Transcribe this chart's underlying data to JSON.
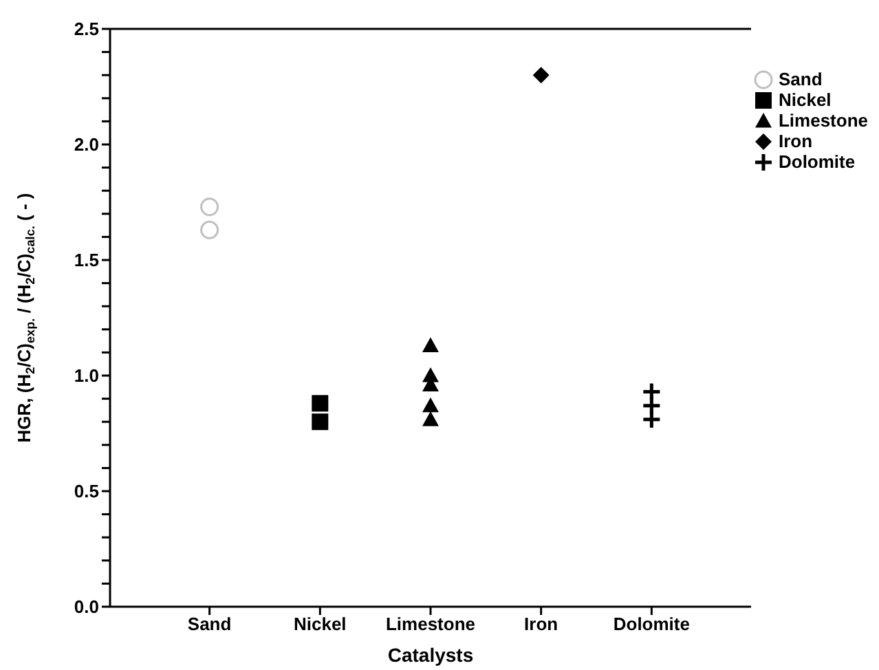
{
  "chart_data": {
    "type": "scatter",
    "xlabel": "Catalysts",
    "ylabel": "HGR, (H$_{2}$/C)$_{exp.}$  /  (H$_{2}$/C)$_{calc.}$ ( - )",
    "categories": [
      "Sand",
      "Nickel",
      "Limestone",
      "Iron",
      "Dolomite"
    ],
    "series": [
      {
        "name": "Sand",
        "color": "#c0c0c0",
        "marker": "circle",
        "x": [
          "Sand",
          "Sand"
        ],
        "values": [
          1.73,
          1.63
        ]
      },
      {
        "name": "Nickel",
        "color": "#000000",
        "marker": "square",
        "x": [
          "Nickel",
          "Nickel"
        ],
        "values": [
          0.88,
          0.8
        ]
      },
      {
        "name": "Limestone",
        "color": "#000000",
        "marker": "triangle",
        "x": [
          "Limestone",
          "Limestone",
          "Limestone",
          "Limestone",
          "Limestone"
        ],
        "values": [
          1.13,
          1.0,
          0.96,
          0.87,
          0.81
        ]
      },
      {
        "name": "Iron",
        "color": "#000000",
        "marker": "diamond",
        "x": [
          "Iron"
        ],
        "values": [
          2.3
        ]
      },
      {
        "name": "Dolomite",
        "color": "#000000",
        "marker": "cross",
        "x": [
          "Dolomite",
          "Dolomite",
          "Dolomite"
        ],
        "values": [
          0.93,
          0.87,
          0.81
        ]
      }
    ],
    "ylim": [
      0,
      2.5
    ],
    "yticks": [
      {
        "value": 0,
        "label": "0.0"
      },
      {
        "value": 0.1,
        "label": null
      },
      {
        "value": 0.2,
        "label": null
      },
      {
        "value": 0.3,
        "label": null
      },
      {
        "value": 0.4,
        "label": null
      },
      0.5,
      {
        "value": 0.6,
        "label": null
      },
      {
        "value": 0.7,
        "label": null
      },
      {
        "value": 0.8,
        "label": null
      },
      {
        "value": 0.9,
        "label": null
      },
      {
        "value": 1,
        "label": "1.0"
      },
      {
        "value": 1.1,
        "label": null
      },
      {
        "value": 1.2,
        "label": null
      },
      {
        "value": 1.3,
        "label": null
      },
      {
        "value": 1.4,
        "label": null
      },
      1.5,
      {
        "value": 1.6,
        "label": null
      },
      {
        "value": 1.7,
        "label": null
      },
      {
        "value": 1.8,
        "label": null
      },
      {
        "value": 1.9,
        "label": null
      },
      {
        "value": 2,
        "label": "2.0"
      },
      {
        "value": 2.1,
        "label": null
      },
      {
        "value": 2.2,
        "label": null
      },
      {
        "value": 2.3,
        "label": null
      },
      {
        "value": 2.4,
        "label": null
      },
      2.5
    ],
    "grid": false,
    "legend": "top right"
  }
}
